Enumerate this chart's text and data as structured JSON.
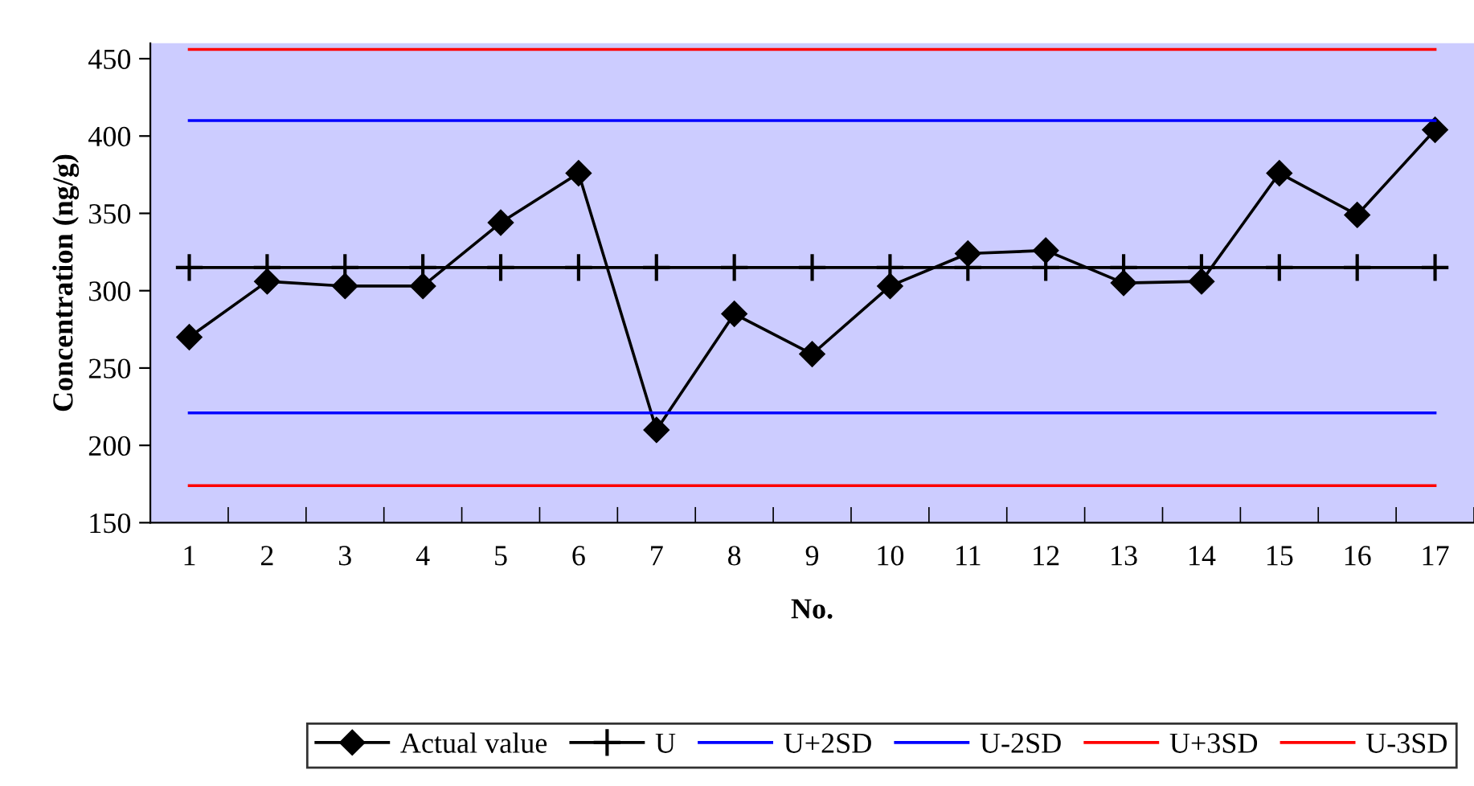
{
  "chart_data": {
    "type": "line",
    "xlabel": "No.",
    "ylabel": "Concentration (ng/g)",
    "categories": [
      "1",
      "2",
      "3",
      "4",
      "5",
      "6",
      "7",
      "8",
      "9",
      "10",
      "11",
      "12",
      "13",
      "14",
      "15",
      "16",
      "17"
    ],
    "ylim": [
      150,
      460
    ],
    "yticks": [
      150,
      200,
      250,
      300,
      350,
      400,
      450
    ],
    "grid": false,
    "legend": "bottom",
    "series": [
      {
        "name": "Actual value",
        "color": "#000000",
        "marker": "diamond",
        "values": [
          270,
          306,
          303,
          303,
          344,
          376,
          210,
          285,
          259,
          303,
          324,
          326,
          305,
          306,
          376,
          349,
          404
        ]
      },
      {
        "name": "U",
        "color": "#000000",
        "marker": "cross",
        "values": [
          315,
          315,
          315,
          315,
          315,
          315,
          315,
          315,
          315,
          315,
          315,
          315,
          315,
          315,
          315,
          315,
          315
        ]
      },
      {
        "name": "U+2SD",
        "color": "#0000ff",
        "marker": "none",
        "values": [
          410,
          410,
          410,
          410,
          410,
          410,
          410,
          410,
          410,
          410,
          410,
          410,
          410,
          410,
          410,
          410,
          410
        ]
      },
      {
        "name": "U-2SD",
        "color": "#0000ff",
        "marker": "none",
        "values": [
          221,
          221,
          221,
          221,
          221,
          221,
          221,
          221,
          221,
          221,
          221,
          221,
          221,
          221,
          221,
          221,
          221
        ]
      },
      {
        "name": "U+3SD",
        "color": "#ff0000",
        "marker": "none",
        "values": [
          456,
          456,
          456,
          456,
          456,
          456,
          456,
          456,
          456,
          456,
          456,
          456,
          456,
          456,
          456,
          456,
          456
        ]
      },
      {
        "name": "U-3SD",
        "color": "#ff0000",
        "marker": "none",
        "values": [
          174,
          174,
          174,
          174,
          174,
          174,
          174,
          174,
          174,
          174,
          174,
          174,
          174,
          174,
          174,
          174,
          174
        ]
      }
    ]
  }
}
